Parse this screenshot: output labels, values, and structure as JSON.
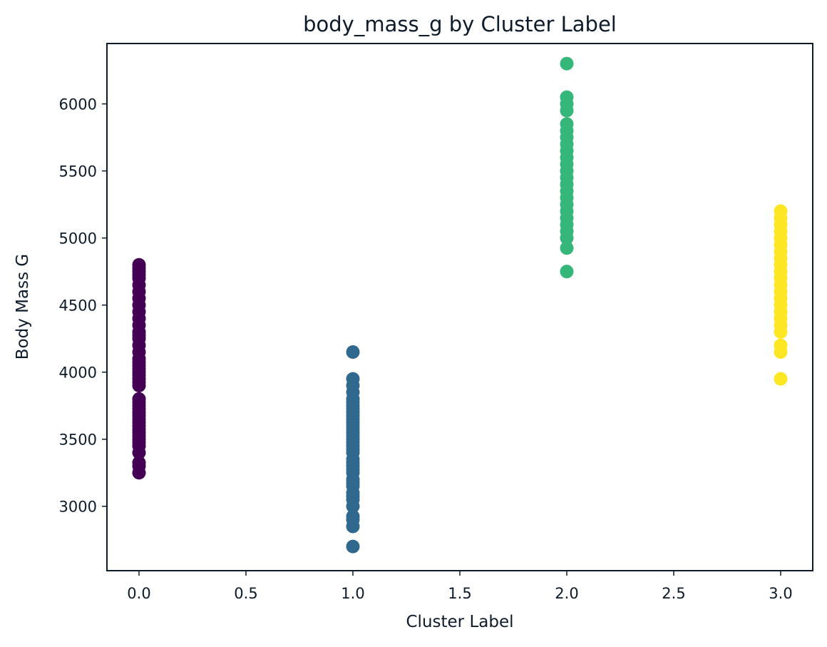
{
  "chart_data": {
    "type": "scatter",
    "title": "body_mass_g by Cluster Label",
    "xlabel": "Cluster Label",
    "ylabel": "Body Mass G",
    "xlim": [
      -0.15,
      3.15
    ],
    "ylim": [
      2520,
      6450
    ],
    "xticks": [
      0.0,
      0.5,
      1.0,
      1.5,
      2.0,
      2.5,
      3.0
    ],
    "xtick_labels": [
      "0.0",
      "0.5",
      "1.0",
      "1.5",
      "2.0",
      "2.5",
      "3.0"
    ],
    "yticks": [
      3000,
      3500,
      4000,
      4500,
      5000,
      5500,
      6000
    ],
    "ytick_labels": [
      "3000",
      "3500",
      "4000",
      "4500",
      "5000",
      "5500",
      "6000"
    ],
    "grid": false,
    "series": [
      {
        "x": 0,
        "color": "#440154",
        "values": [
          3250,
          3300,
          3325,
          3400,
          3450,
          3475,
          3500,
          3525,
          3550,
          3575,
          3600,
          3625,
          3650,
          3675,
          3700,
          3725,
          3750,
          3775,
          3800,
          3900,
          3925,
          3950,
          3975,
          4000,
          4025,
          4050,
          4075,
          4100,
          4150,
          4200,
          4250,
          4275,
          4300,
          4350,
          4400,
          4450,
          4500,
          4550,
          4600,
          4650,
          4700,
          4725,
          4750,
          4775,
          4800
        ]
      },
      {
        "x": 1,
        "color": "#31688e",
        "values": [
          2700,
          2850,
          2900,
          2925,
          3000,
          3050,
          3075,
          3100,
          3150,
          3175,
          3200,
          3250,
          3275,
          3300,
          3325,
          3350,
          3400,
          3425,
          3450,
          3475,
          3500,
          3525,
          3550,
          3575,
          3600,
          3625,
          3650,
          3675,
          3700,
          3725,
          3750,
          3775,
          3800,
          3850,
          3900,
          3950,
          4150
        ]
      },
      {
        "x": 2,
        "color": "#35b779",
        "values": [
          4750,
          4925,
          5000,
          5050,
          5100,
          5150,
          5200,
          5250,
          5300,
          5350,
          5400,
          5450,
          5500,
          5550,
          5600,
          5650,
          5700,
          5750,
          5800,
          5850,
          5950,
          6000,
          6050,
          6300
        ]
      },
      {
        "x": 3,
        "color": "#fde725",
        "values": [
          3950,
          4150,
          4200,
          4300,
          4350,
          4400,
          4450,
          4500,
          4550,
          4600,
          4650,
          4700,
          4750,
          4800,
          4850,
          4900,
          4950,
          5000,
          5050,
          5100,
          5150,
          5200
        ]
      }
    ]
  }
}
